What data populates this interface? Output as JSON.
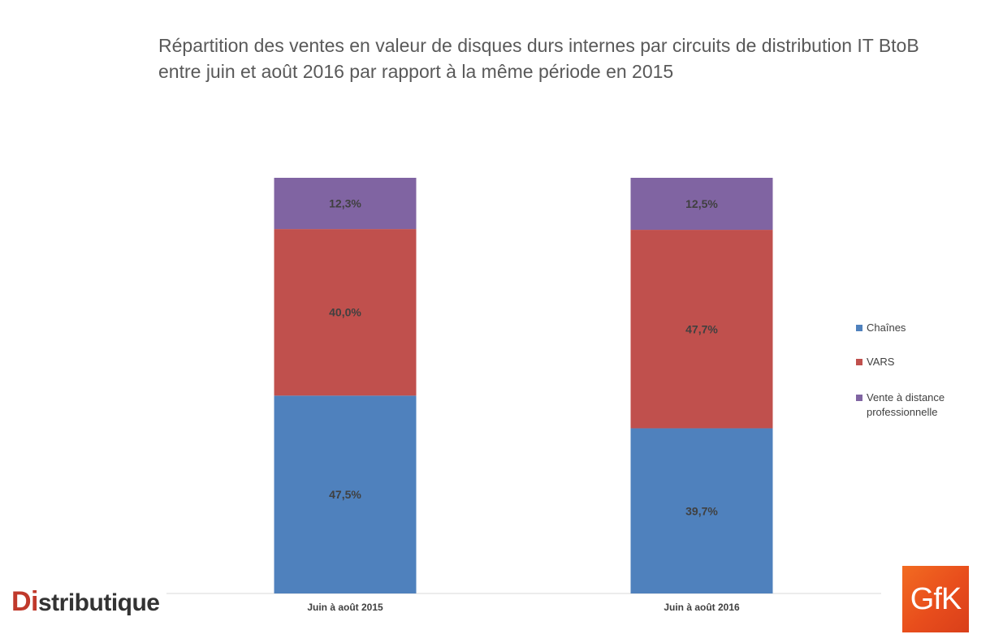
{
  "chart_data": {
    "type": "bar",
    "stacked": true,
    "title": "Répartition des ventes en valeur de disques durs internes par circuits de distribution IT BtoB entre juin et août 2016 par rapport à la même période en 2015",
    "categories": [
      "Juin à août 2015",
      "Juin à août 2016"
    ],
    "series": [
      {
        "name": "Chaînes",
        "values": [
          47.5,
          39.7
        ],
        "labels": [
          "47,5%",
          "39,7%"
        ],
        "color": "#4f81bd"
      },
      {
        "name": "VARS",
        "values": [
          40.0,
          47.7
        ],
        "labels": [
          "40,0%",
          "47,7%"
        ],
        "color": "#c0504d"
      },
      {
        "name": "Vente à distance professionnelle",
        "values": [
          12.3,
          12.5
        ],
        "labels": [
          "12,3%",
          "12,5%"
        ],
        "color": "#8064a2"
      }
    ],
    "ylim": [
      0,
      100
    ],
    "grid": false,
    "legend_position": "right"
  },
  "logos": {
    "publisher": {
      "first": "Di",
      "rest": "stributique"
    },
    "source": "GfK"
  }
}
